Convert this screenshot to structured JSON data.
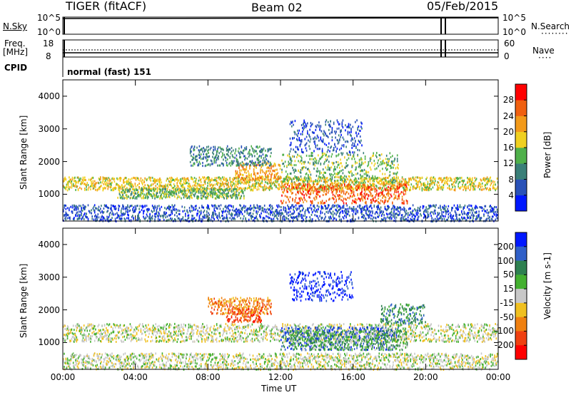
{
  "header": {
    "station": "TIGER (fitACF)",
    "beam": "Beam 02",
    "date": "05/Feb/2015"
  },
  "top_panels": {
    "nsky_label": "N.Sky",
    "nsky_ticks": [
      "10^5",
      "10^0"
    ],
    "nsearch_label": "N.Search",
    "nsearch_ticks": [
      "10^5",
      "10^0"
    ],
    "freq_label_1": "Freq.",
    "freq_label_2": "[MHz]",
    "freq_ticks": [
      "18",
      "8"
    ],
    "nave_label": "Nave",
    "nave_ticks": [
      "60",
      "0"
    ],
    "cpid_label": "CPID",
    "cpid_value": "normal (fast) 151"
  },
  "chart_data": [
    {
      "type": "heatmap",
      "name": "Power",
      "xlabel": "Time UT",
      "ylabel": "Slant Range [km]",
      "x_ticks": [
        "00:00",
        "04:00",
        "08:00",
        "12:00",
        "16:00",
        "20:00",
        "00:00"
      ],
      "x_range_hours": [
        0,
        24
      ],
      "y_ticks": [
        "1000",
        "2000",
        "3000",
        "4000"
      ],
      "y_range_km": [
        180,
        4500
      ],
      "colorbar_label": "Power [dB]",
      "colorbar_ticks": [
        "4",
        "8",
        "12",
        "16",
        "20",
        "24",
        "28"
      ],
      "colorbar_colors": [
        "#0018ff",
        "#2a52b8",
        "#3a7f78",
        "#4fb04a",
        "#f0d020",
        "#f39a1a",
        "#f06010",
        "#ff0000"
      ],
      "scatter_regions": [
        {
          "t0": 0.0,
          "t1": 24.0,
          "r0": 1150,
          "r1": 1550,
          "level": 4
        },
        {
          "t0": 3.0,
          "t1": 10.0,
          "r0": 900,
          "r1": 1200,
          "level": 3
        },
        {
          "t0": 12.0,
          "t1": 19.0,
          "r0": 750,
          "r1": 1350,
          "level": 6
        },
        {
          "t0": 9.5,
          "t1": 12.0,
          "r0": 1450,
          "r1": 2000,
          "level": 5
        },
        {
          "t0": 12.0,
          "t1": 18.5,
          "r0": 1400,
          "r1": 2300,
          "level": 3
        },
        {
          "t0": 7.0,
          "t1": 11.5,
          "r0": 1900,
          "r1": 2500,
          "level": 2
        },
        {
          "t0": 12.5,
          "t1": 16.5,
          "r0": 2300,
          "r1": 3300,
          "level": 1
        },
        {
          "t0": 0.0,
          "t1": 24.0,
          "r0": 200,
          "r1": 700,
          "level": 1
        }
      ]
    },
    {
      "type": "heatmap",
      "name": "Velocity",
      "xlabel": "Time UT",
      "ylabel": "Slant Range [km]",
      "x_ticks": [
        "00:00",
        "04:00",
        "08:00",
        "12:00",
        "16:00",
        "20:00",
        "00:00"
      ],
      "x_range_hours": [
        0,
        24
      ],
      "y_ticks": [
        "1000",
        "2000",
        "3000",
        "4000"
      ],
      "y_range_km": [
        180,
        4500
      ],
      "colorbar_label": "Velocity [m s-1]",
      "colorbar_ticks": [
        "200",
        "100",
        "50",
        "15",
        "-15",
        "-50",
        "-100",
        "-200"
      ],
      "colorbar_colors": [
        "#0018ff",
        "#3060c8",
        "#2e8050",
        "#44b030",
        "#c8c8c8",
        "#f0c020",
        "#f08010",
        "#f04010",
        "#ff0000"
      ],
      "scatter_regions": [
        {
          "t0": 0.0,
          "t1": 24.0,
          "r0": 1050,
          "r1": 1600,
          "level": 4
        },
        {
          "t0": 12.0,
          "t1": 18.5,
          "r0": 800,
          "r1": 1500,
          "level": 1
        },
        {
          "t0": 12.5,
          "t1": 19.0,
          "r0": 800,
          "r1": 1400,
          "level": 3
        },
        {
          "t0": 9.0,
          "t1": 11.0,
          "r0": 1650,
          "r1": 2100,
          "level": 7
        },
        {
          "t0": 12.5,
          "t1": 16.0,
          "r0": 2300,
          "r1": 3200,
          "level": 0
        },
        {
          "t0": 8.0,
          "t1": 11.5,
          "r0": 1900,
          "r1": 2400,
          "level": 6
        },
        {
          "t0": 17.5,
          "t1": 20.0,
          "r0": 1600,
          "r1": 2200,
          "level": 2
        },
        {
          "t0": 0.0,
          "t1": 24.0,
          "r0": 200,
          "r1": 700,
          "level": 4
        }
      ]
    }
  ]
}
